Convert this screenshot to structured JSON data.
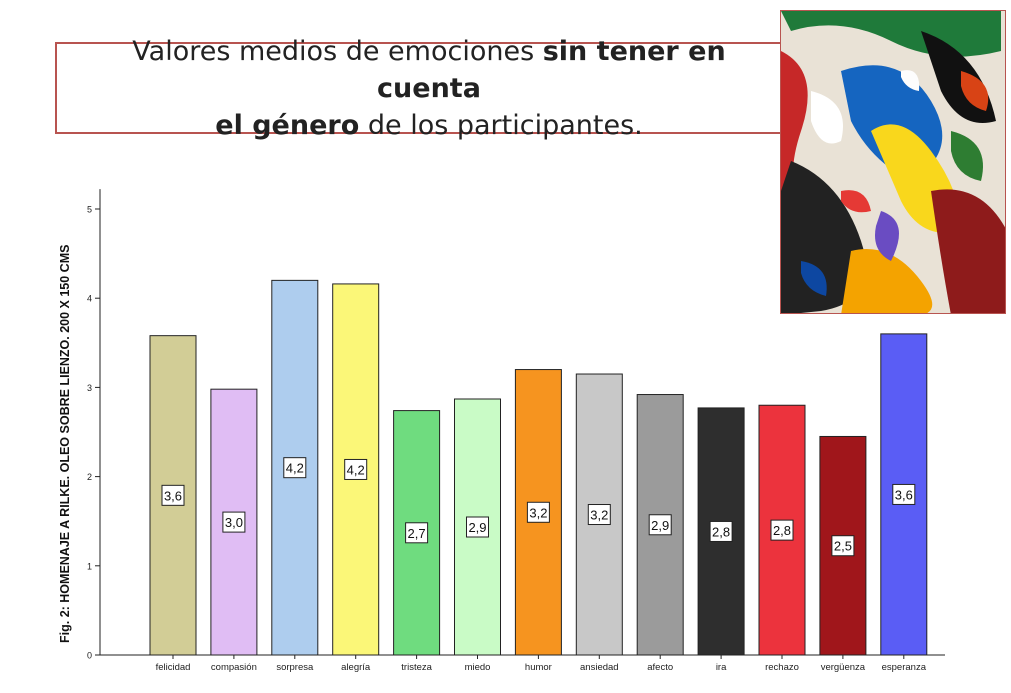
{
  "slide": {
    "title_part1": "Valores medios de emociones ",
    "title_bold1": "sin tener en cuenta",
    "title_bold2": "el género",
    "title_part2": " de los participantes."
  },
  "painting": {
    "description_icon": "abstract-painting-image"
  },
  "chart_data": {
    "type": "bar",
    "title": "",
    "ylabel": "Fig. 2: HOMENAJE A RILKE. OLEO SOBRE LIENZO. 200 X 150 CMS",
    "xlabel": "",
    "ylim": [
      0,
      5.2
    ],
    "yticks": [
      "0",
      "1",
      "2",
      "3",
      "4",
      "5"
    ],
    "categories": [
      "felicidad",
      "compasión",
      "sorpresa",
      "alegría",
      "tristeza",
      "miedo",
      "humor",
      "ansiedad",
      "afecto",
      "ira",
      "rechazo",
      "vergüenza",
      "esperanza"
    ],
    "values": [
      3.58,
      2.98,
      4.2,
      4.16,
      2.74,
      2.87,
      3.2,
      3.15,
      2.92,
      2.77,
      2.8,
      2.45,
      3.6
    ],
    "value_labels": [
      "3,6",
      "3,0",
      "4,2",
      "4,2",
      "2,7",
      "2,9",
      "3,2",
      "3,2",
      "2,9",
      "2,8",
      "2,8",
      "2,5",
      "3,6"
    ],
    "colors": [
      "#d2cd96",
      "#e0bdf4",
      "#aecdee",
      "#fbf778",
      "#6fdc7f",
      "#c9fbc6",
      "#f6941f",
      "#c8c8c8",
      "#9b9b9b",
      "#2e2e2e",
      "#ec333d",
      "#a0161b",
      "#5a5df5"
    ],
    "grid": false,
    "legend": "none"
  }
}
